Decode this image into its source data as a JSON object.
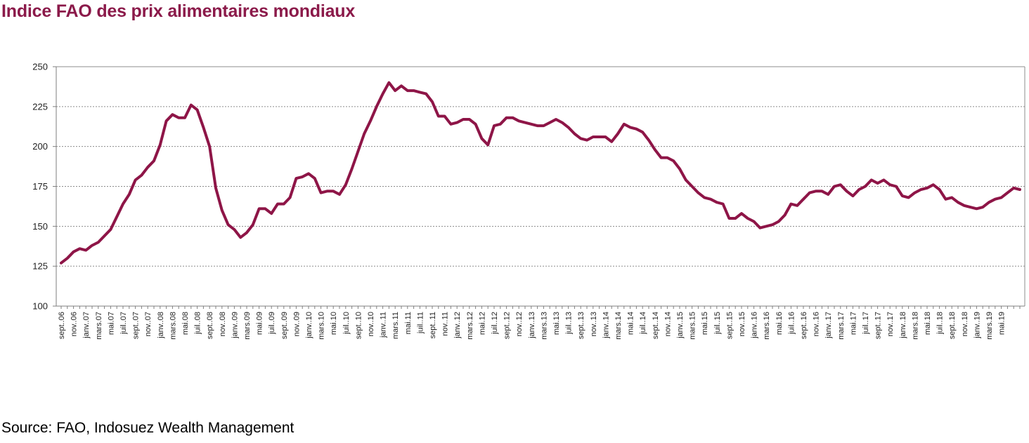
{
  "title": "Indice FAO des prix alimentaires mondiaux",
  "source": "Source: FAO, Indosuez Wealth Management",
  "colors": {
    "title": "#8b1a4a",
    "line": "#8e1547",
    "grid": "#8c8c8c",
    "axis": "#7f7f7f"
  },
  "chart_data": {
    "type": "line",
    "title": "Indice FAO des prix alimentaires mondiaux",
    "xlabel": "",
    "ylabel": "",
    "ylim": [
      100,
      250
    ],
    "yticks": [
      100,
      125,
      150,
      175,
      200,
      225,
      250
    ],
    "grid": true,
    "legend": "none",
    "xtick_labels": [
      "sept..06",
      "nov..06",
      "janv..07",
      "mars.07",
      "mai.07",
      "juil..07",
      "sept..07",
      "nov..07",
      "janv..08",
      "mars.08",
      "mai.08",
      "juil..08",
      "sept..08",
      "nov..08",
      "janv..09",
      "mars.09",
      "mai.09",
      "juil..09",
      "sept..09",
      "nov..09",
      "janv..10",
      "mars.10",
      "mai.10",
      "juil..10",
      "sept..10",
      "nov..10",
      "janv..11",
      "mars.11",
      "mai.11",
      "juil..11",
      "sept..11",
      "nov..11",
      "janv..12",
      "mars.12",
      "mai.12",
      "juil..12",
      "sept..12",
      "nov..12",
      "janv..13",
      "mars.13",
      "mai.13",
      "juil..13",
      "sept..13",
      "nov..13",
      "janv..14",
      "mars.14",
      "mai.14",
      "juil..14",
      "sept..14",
      "nov..14",
      "janv..15",
      "mars.15",
      "mai.15",
      "juil..15",
      "sept..15",
      "nov..15",
      "janv..16",
      "mars.16",
      "mai.16",
      "juil..16",
      "sept..16",
      "nov..16",
      "janv..17",
      "mars.17",
      "mai.17",
      "juil..17",
      "sept..17",
      "nov..17",
      "janv..18",
      "mars.18",
      "mai.18",
      "juil..18",
      "sept..18",
      "nov..18",
      "janv..19",
      "mars.19",
      "mai.19"
    ],
    "series": [
      {
        "values": [
          127,
          130,
          134,
          136,
          135,
          138,
          140,
          144,
          148,
          156,
          164,
          170,
          179,
          182,
          187,
          191,
          201,
          216,
          220,
          218,
          218,
          226,
          223,
          212,
          200,
          174,
          160,
          151,
          148,
          143,
          146,
          151,
          161,
          161,
          158,
          164,
          164,
          168,
          180,
          181,
          183,
          180,
          171,
          172,
          172,
          170,
          176,
          186,
          197,
          208,
          216,
          225,
          233,
          240,
          235,
          238,
          235,
          235,
          234,
          233,
          228,
          219,
          219,
          214,
          215,
          217,
          217,
          214,
          205,
          201,
          213,
          214,
          218,
          218,
          216,
          215,
          214,
          213,
          213,
          215,
          217,
          215,
          212,
          208,
          205,
          204,
          206,
          206,
          206,
          203,
          208,
          214,
          212,
          211,
          209,
          204,
          198,
          193,
          193,
          191,
          186,
          179,
          175,
          171,
          168,
          167,
          165,
          164,
          155,
          155,
          158,
          155,
          153,
          149,
          150,
          151,
          153,
          157,
          164,
          163,
          167,
          171,
          172,
          172,
          170,
          175,
          176,
          172,
          169,
          173,
          175,
          179,
          177,
          179,
          176,
          175,
          169,
          168,
          171,
          173,
          174,
          176,
          173,
          167,
          168,
          165,
          163,
          162,
          161,
          162,
          165,
          167,
          168,
          171,
          174,
          173
        ]
      }
    ]
  }
}
